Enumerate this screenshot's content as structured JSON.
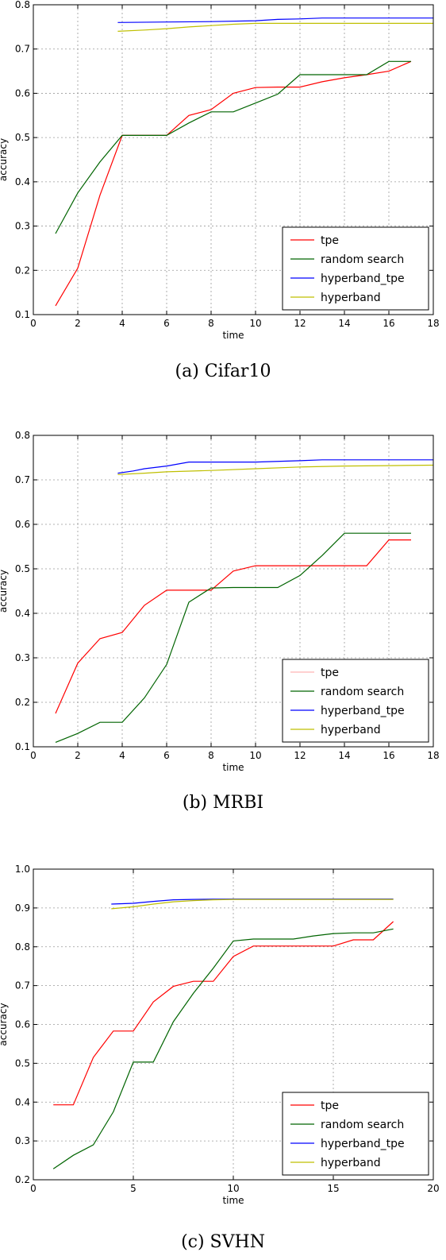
{
  "chart_data": [
    {
      "type": "line",
      "caption": "(a) Cifar10",
      "xlabel": "time",
      "ylabel": "accuracy",
      "xlim": [
        0,
        18
      ],
      "ylim": [
        0.1,
        0.8
      ],
      "xticks": [
        0,
        2,
        4,
        6,
        8,
        10,
        12,
        14,
        16,
        18
      ],
      "yticks": [
        0.1,
        0.2,
        0.3,
        0.4,
        0.5,
        0.6,
        0.7,
        0.8
      ],
      "grid": true,
      "legend": "bottom-right",
      "series": [
        {
          "name": "tpe",
          "color": "#ff0000",
          "x": [
            1,
            2,
            3,
            4,
            5,
            6,
            7,
            8,
            9,
            10,
            11,
            12,
            13,
            14,
            15,
            16,
            17
          ],
          "y": [
            0.12,
            0.205,
            0.37,
            0.505,
            0.505,
            0.505,
            0.55,
            0.563,
            0.6,
            0.613,
            0.614,
            0.614,
            0.626,
            0.635,
            0.642,
            0.65,
            0.672
          ]
        },
        {
          "name": "random search",
          "color": "#006400",
          "x": [
            1,
            2,
            3,
            4,
            5,
            6,
            7,
            8,
            9,
            10,
            11,
            12,
            13,
            14,
            15,
            16,
            17
          ],
          "y": [
            0.283,
            0.375,
            0.445,
            0.505,
            0.505,
            0.505,
            0.533,
            0.558,
            0.558,
            0.578,
            0.598,
            0.642,
            0.642,
            0.642,
            0.642,
            0.672,
            0.672
          ]
        },
        {
          "name": "hyperband_tpe",
          "color": "#0000ff",
          "x": [
            3.8,
            6,
            8,
            10,
            11,
            12,
            13,
            14,
            16,
            18
          ],
          "y": [
            0.76,
            0.761,
            0.762,
            0.764,
            0.767,
            0.768,
            0.77,
            0.77,
            0.77,
            0.77
          ]
        },
        {
          "name": "hyperband",
          "color": "#bfbf00",
          "x": [
            3.8,
            5,
            6,
            7,
            8,
            9,
            10,
            12,
            14,
            16,
            18
          ],
          "y": [
            0.74,
            0.743,
            0.746,
            0.75,
            0.753,
            0.756,
            0.758,
            0.758,
            0.758,
            0.758,
            0.758
          ]
        }
      ]
    },
    {
      "type": "line",
      "caption": "(b) MRBI",
      "xlabel": "time",
      "ylabel": "accuracy",
      "xlim": [
        0,
        18
      ],
      "ylim": [
        0.1,
        0.8
      ],
      "xticks": [
        0,
        2,
        4,
        6,
        8,
        10,
        12,
        14,
        16,
        18
      ],
      "yticks": [
        0.1,
        0.2,
        0.3,
        0.4,
        0.5,
        0.6,
        0.7,
        0.8
      ],
      "grid": true,
      "legend": "bottom-right",
      "series": [
        {
          "name": "tpe",
          "color": "#ff0000",
          "legend_color": "#ffb3b3",
          "x": [
            1,
            2,
            3,
            4,
            5,
            6,
            7,
            8,
            9,
            10,
            11,
            12,
            13,
            14,
            15,
            16,
            17
          ],
          "y": [
            0.175,
            0.288,
            0.343,
            0.357,
            0.418,
            0.452,
            0.452,
            0.452,
            0.495,
            0.507,
            0.507,
            0.507,
            0.507,
            0.507,
            0.507,
            0.565,
            0.565
          ]
        },
        {
          "name": "random search",
          "color": "#006400",
          "x": [
            1,
            2,
            3,
            4,
            5,
            6,
            7,
            8,
            9,
            10,
            11,
            12,
            13,
            14,
            15,
            16,
            17
          ],
          "y": [
            0.11,
            0.13,
            0.155,
            0.155,
            0.21,
            0.285,
            0.425,
            0.457,
            0.458,
            0.458,
            0.458,
            0.485,
            0.53,
            0.58,
            0.58,
            0.58,
            0.58
          ]
        },
        {
          "name": "hyperband_tpe",
          "color": "#0000ff",
          "x": [
            3.8,
            4.5,
            5,
            6,
            7,
            8,
            9,
            10,
            12,
            13,
            14,
            16,
            18
          ],
          "y": [
            0.715,
            0.72,
            0.725,
            0.731,
            0.74,
            0.74,
            0.74,
            0.74,
            0.743,
            0.745,
            0.745,
            0.745,
            0.745
          ]
        },
        {
          "name": "hyperband",
          "color": "#bfbf00",
          "x": [
            3.8,
            5,
            6,
            8,
            10,
            12,
            14,
            16,
            18
          ],
          "y": [
            0.712,
            0.715,
            0.718,
            0.721,
            0.725,
            0.729,
            0.731,
            0.732,
            0.733
          ]
        }
      ]
    },
    {
      "type": "line",
      "caption": "(c) SVHN",
      "xlabel": "time",
      "ylabel": "accuracy",
      "xlim": [
        0,
        20
      ],
      "ylim": [
        0.2,
        1.0
      ],
      "xticks": [
        0,
        5,
        10,
        15,
        20
      ],
      "yticks": [
        0.2,
        0.3,
        0.4,
        0.5,
        0.6,
        0.7,
        0.8,
        0.9,
        1.0
      ],
      "grid": true,
      "legend": "bottom-right",
      "series": [
        {
          "name": "tpe",
          "color": "#ff0000",
          "x": [
            1,
            2,
            3,
            4,
            5,
            6,
            7,
            8,
            9,
            10,
            11,
            12,
            13,
            14,
            15,
            16,
            17,
            18
          ],
          "y": [
            0.393,
            0.393,
            0.515,
            0.583,
            0.583,
            0.658,
            0.698,
            0.711,
            0.711,
            0.775,
            0.802,
            0.802,
            0.802,
            0.802,
            0.802,
            0.818,
            0.818,
            0.865
          ]
        },
        {
          "name": "random search",
          "color": "#006400",
          "x": [
            1,
            2,
            3,
            4,
            5,
            6,
            7,
            8,
            9,
            10,
            11,
            12,
            13,
            14,
            15,
            16,
            17,
            18
          ],
          "y": [
            0.228,
            0.263,
            0.29,
            0.375,
            0.503,
            0.503,
            0.607,
            0.68,
            0.745,
            0.815,
            0.82,
            0.82,
            0.82,
            0.828,
            0.834,
            0.836,
            0.836,
            0.846
          ]
        },
        {
          "name": "hyperband_tpe",
          "color": "#0000ff",
          "x": [
            3.9,
            5,
            6,
            7,
            8,
            10,
            12,
            14,
            16,
            18
          ],
          "y": [
            0.91,
            0.912,
            0.917,
            0.921,
            0.922,
            0.923,
            0.923,
            0.923,
            0.923,
            0.923
          ]
        },
        {
          "name": "hyperband",
          "color": "#bfbf00",
          "x": [
            3.9,
            5,
            6,
            7,
            8,
            9,
            10,
            12,
            14,
            16,
            18
          ],
          "y": [
            0.898,
            0.903,
            0.91,
            0.916,
            0.919,
            0.921,
            0.922,
            0.922,
            0.922,
            0.922,
            0.922
          ]
        }
      ]
    }
  ]
}
